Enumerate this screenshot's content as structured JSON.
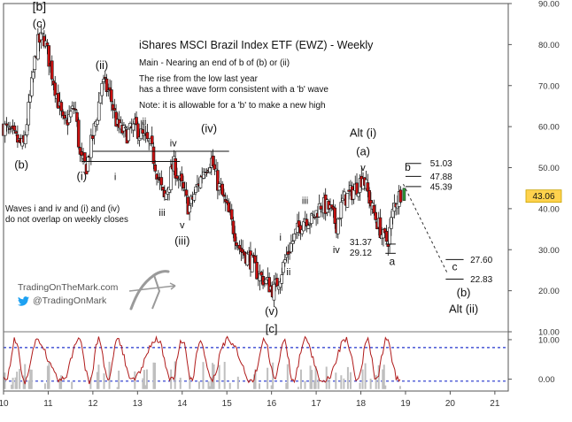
{
  "title": "iShares MSCI Brazil Index ETF (EWZ) - Weekly",
  "notes": [
    "Main - Nearing an end of b of (b) or (ii)",
    "The rise from the low last year",
    "has a three wave form consistent with a 'b' wave",
    "Note: it is allowable for a 'b' to make a new high"
  ],
  "overlap_note": [
    "Waves i and iv and (i) and (iv)",
    "do not overlap on weekly closes"
  ],
  "brand": {
    "site": "TradingOnTheMark.com",
    "twitter": "@TradingOnMark"
  },
  "colors": {
    "bull": "#ffffff",
    "bear": "#cc1111",
    "axis_text": "#333333",
    "price_badge": "#ffd24d",
    "osc_line": "#b01a1a",
    "osc_band": "#2233cc",
    "osc_hist": "#bfbfbf",
    "target_green": "#2e9e3a"
  },
  "chart_data": {
    "type": "candlestick",
    "x_tick_labels": [
      "10",
      "11",
      "12",
      "13",
      "14",
      "15",
      "16",
      "17",
      "18",
      "19",
      "20",
      "21"
    ],
    "xlim": [
      10,
      21.3
    ],
    "y_tick_labels": [
      "10.00",
      "20.00",
      "30.00",
      "40.00",
      "50.00",
      "60.00",
      "70.00",
      "80.00",
      "90.00"
    ],
    "ylim": [
      10,
      90
    ],
    "last_price": "43.06",
    "anchors": [
      [
        10.0,
        60
      ],
      [
        10.45,
        55
      ],
      [
        10.75,
        80
      ],
      [
        10.9,
        82
      ],
      [
        11.35,
        60
      ],
      [
        11.6,
        65
      ],
      [
        11.72,
        52
      ],
      [
        11.85,
        50
      ],
      [
        12.1,
        63
      ],
      [
        12.2,
        71
      ],
      [
        12.38,
        68
      ],
      [
        12.55,
        60
      ],
      [
        12.75,
        58
      ],
      [
        12.95,
        60
      ],
      [
        13.15,
        57
      ],
      [
        13.3,
        55
      ],
      [
        13.5,
        46
      ],
      [
        13.6,
        42
      ],
      [
        13.8,
        51
      ],
      [
        14.0,
        45
      ],
      [
        14.15,
        40
      ],
      [
        14.5,
        50
      ],
      [
        14.65,
        52
      ],
      [
        14.8,
        46
      ],
      [
        15.0,
        40
      ],
      [
        15.3,
        30
      ],
      [
        15.5,
        28
      ],
      [
        15.7,
        24
      ],
      [
        15.9,
        22
      ],
      [
        16.05,
        20
      ],
      [
        16.2,
        24
      ],
      [
        16.35,
        29
      ],
      [
        16.55,
        34
      ],
      [
        16.75,
        38
      ],
      [
        16.9,
        37
      ],
      [
        17.1,
        41
      ],
      [
        17.3,
        40
      ],
      [
        17.45,
        36
      ],
      [
        17.6,
        42
      ],
      [
        17.8,
        44
      ],
      [
        17.95,
        46
      ],
      [
        18.05,
        48
      ],
      [
        18.25,
        40
      ],
      [
        18.5,
        33
      ],
      [
        18.6,
        32
      ],
      [
        18.75,
        41
      ],
      [
        18.9,
        44
      ]
    ],
    "oscillator": {
      "y_tick_labels": [
        "10.00",
        "0.00"
      ],
      "ylim": [
        -3,
        12
      ],
      "upper_band": 8,
      "lower_band": -0.5
    },
    "hlines": [
      {
        "x1": 11.75,
        "x2": 13.95,
        "y": 51.5
      },
      {
        "x1": 12.0,
        "x2": 15.05,
        "y": 54
      },
      {
        "x1": 18.55,
        "x2": 18.78,
        "y": 31.37
      },
      {
        "x1": 18.55,
        "x2": 18.78,
        "y": 29.12
      },
      {
        "x1": 19.0,
        "x2": 19.35,
        "y": 51.03
      },
      {
        "x1": 19.0,
        "x2": 19.35,
        "y": 47.88
      },
      {
        "x1": 19.0,
        "x2": 19.35,
        "y": 45.39
      },
      {
        "x1": 19.9,
        "x2": 20.3,
        "y": 27.6
      },
      {
        "x1": 19.9,
        "x2": 20.3,
        "y": 22.83
      }
    ],
    "projection": [
      [
        18.95,
        46
      ],
      [
        19.95,
        24
      ]
    ],
    "value_labels": [
      {
        "text": "51.03",
        "x": 19.55,
        "y": 51.03
      },
      {
        "text": "47.88",
        "x": 19.55,
        "y": 47.88
      },
      {
        "text": "45.39",
        "x": 19.55,
        "y": 45.39
      },
      {
        "text": "31.37",
        "x": 17.75,
        "y": 31.9
      },
      {
        "text": "29.12",
        "x": 17.75,
        "y": 29.3
      },
      {
        "text": "27.60",
        "x": 20.45,
        "y": 27.6
      },
      {
        "text": "22.83",
        "x": 20.45,
        "y": 22.83
      }
    ],
    "wave_labels": [
      {
        "text": "[b]",
        "x": 10.8,
        "y": 88.3,
        "size": 14
      },
      {
        "text": "(c)",
        "x": 10.8,
        "y": 84.2,
        "size": 13
      },
      {
        "text": "(b)",
        "x": 10.4,
        "y": 49.8,
        "size": 13
      },
      {
        "text": "(i)",
        "x": 11.75,
        "y": 47,
        "size": 13
      },
      {
        "text": "(ii)",
        "x": 12.2,
        "y": 74,
        "size": 13
      },
      {
        "text": "ii",
        "x": 13.15,
        "y": 60.5,
        "size": 11
      },
      {
        "text": "iv",
        "x": 13.8,
        "y": 55.2,
        "size": 11
      },
      {
        "text": "i",
        "x": 12.5,
        "y": 47,
        "size": 11
      },
      {
        "text": "iii",
        "x": 13.55,
        "y": 38.3,
        "size": 11
      },
      {
        "text": "v",
        "x": 14.0,
        "y": 35.2,
        "size": 11
      },
      {
        "text": "(iii)",
        "x": 14.0,
        "y": 31.2,
        "size": 13
      },
      {
        "text": "(iv)",
        "x": 14.6,
        "y": 58.6,
        "size": 13
      },
      {
        "text": "i",
        "x": 16.2,
        "y": 32.2,
        "size": 11
      },
      {
        "text": "ii",
        "x": 16.38,
        "y": 23.8,
        "size": 11
      },
      {
        "text": "iii",
        "x": 16.75,
        "y": 41.2,
        "size": 11
      },
      {
        "text": "iv",
        "x": 17.45,
        "y": 29.2,
        "size": 11
      },
      {
        "text": "(v)",
        "x": 16.0,
        "y": 14.1,
        "size": 13
      },
      {
        "text": "[c]",
        "x": 16.0,
        "y": 9.8,
        "size": 13
      },
      {
        "text": "Alt (i)",
        "x": 18.05,
        "y": 57.5,
        "size": 13
      },
      {
        "text": "(a)",
        "x": 18.05,
        "y": 53,
        "size": 13
      },
      {
        "text": "v",
        "x": 18.05,
        "y": 49.2,
        "size": 11
      },
      {
        "text": "a",
        "x": 18.7,
        "y": 26.3,
        "size": 12
      },
      {
        "text": "b",
        "x": 19.05,
        "y": 49.2,
        "size": 12
      },
      {
        "text": "c",
        "x": 20.1,
        "y": 25,
        "size": 12
      },
      {
        "text": "(b)",
        "x": 20.3,
        "y": 18.6,
        "size": 13
      },
      {
        "text": "Alt (ii)",
        "x": 20.3,
        "y": 14.6,
        "size": 13
      }
    ]
  }
}
